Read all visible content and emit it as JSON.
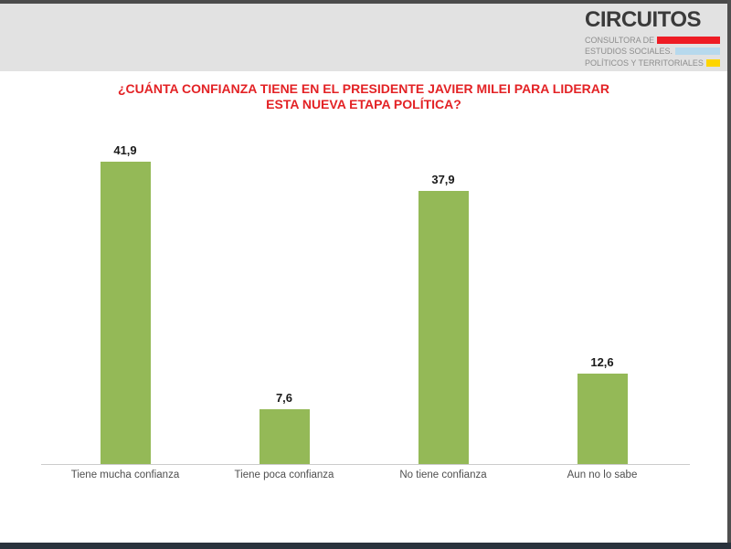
{
  "logo": {
    "title": "CIRCUITOS",
    "lines": [
      {
        "text": "CONSULTORA DE",
        "bar_color": "#ee1c24"
      },
      {
        "text": "ESTUDIOS SOCIALES.",
        "bar_color": "#b7d9ed"
      },
      {
        "text": "POLÍTICOS Y TERRITORIALES",
        "bar_color": "#fed500"
      }
    ]
  },
  "question": {
    "line1": "¿CUÁNTA CONFIANZA TIENE EN EL PRESIDENTE JAVIER MILEI PARA LIDERAR",
    "line2": "ESTA NUEVA ETAPA POLÍTICA?"
  },
  "chart_data": {
    "type": "bar",
    "title": "¿CUÁNTA CONFIANZA TIENE EN EL PRESIDENTE JAVIER MILEI PARA LIDERAR ESTA NUEVA ETAPA POLÍTICA?",
    "categories": [
      "Tiene mucha confianza",
      "Tiene poca confianza",
      "No tiene confianza",
      "Aun no lo sabe"
    ],
    "values": [
      41.9,
      7.6,
      37.9,
      12.6
    ],
    "value_labels": [
      "41,9",
      "7,6",
      "37,9",
      "12,6"
    ],
    "bar_color": "#94b957",
    "ylim": [
      0,
      46.6
    ],
    "grid": false,
    "legend": false,
    "xlabel": "",
    "ylabel": ""
  },
  "colors": {
    "title_red": "#e32225",
    "header_band": "#e2e2e2",
    "frame_dark": "#4b4b4b",
    "bottom_strip": "#2a323c",
    "axis_line": "#cccccc"
  }
}
